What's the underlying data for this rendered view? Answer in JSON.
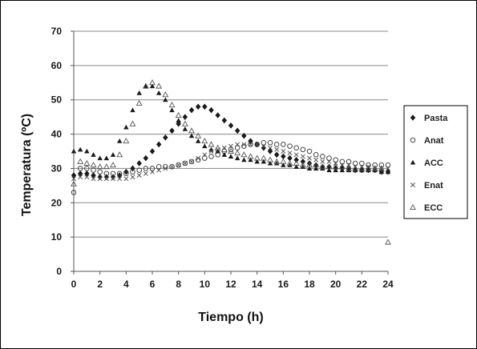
{
  "chart_data": {
    "type": "scatter",
    "xlabel": "Tiempo (h)",
    "ylabel": "Temperatura (ºC)",
    "xlim": [
      0,
      24
    ],
    "ylim": [
      0,
      70
    ],
    "xticks": [
      0,
      2,
      4,
      6,
      8,
      10,
      12,
      14,
      16,
      18,
      20,
      22,
      24
    ],
    "yticks": [
      0,
      10,
      20,
      30,
      40,
      50,
      60,
      70
    ],
    "grid": "horizontal",
    "legend_position": "right",
    "series": [
      {
        "name": "Pasta",
        "marker": "diamond-filled",
        "color": "#1a1a1a",
        "points": [
          [
            0,
            28
          ],
          [
            0.5,
            28.5
          ],
          [
            1,
            28.5
          ],
          [
            1.5,
            28
          ],
          [
            2,
            27.5
          ],
          [
            2.5,
            27.5
          ],
          [
            3,
            27.5
          ],
          [
            3.5,
            28
          ],
          [
            4,
            29
          ],
          [
            4.5,
            30
          ],
          [
            5,
            31.5
          ],
          [
            5.5,
            33
          ],
          [
            6,
            35
          ],
          [
            6.5,
            37
          ],
          [
            7,
            39
          ],
          [
            7.5,
            41
          ],
          [
            8,
            43
          ],
          [
            8.5,
            45
          ],
          [
            9,
            47
          ],
          [
            9.5,
            48
          ],
          [
            10,
            48
          ],
          [
            10.5,
            47
          ],
          [
            11,
            45.5
          ],
          [
            11.5,
            44
          ],
          [
            12,
            42.5
          ],
          [
            12.5,
            41
          ],
          [
            13,
            39.5
          ],
          [
            13.5,
            38
          ],
          [
            14,
            37
          ],
          [
            14.5,
            36
          ],
          [
            15,
            35
          ],
          [
            15.5,
            34
          ],
          [
            16,
            33.5
          ],
          [
            16.5,
            33
          ],
          [
            17,
            32.5
          ],
          [
            17.5,
            32
          ],
          [
            18,
            31.5
          ],
          [
            18.5,
            31
          ],
          [
            19,
            30.5
          ],
          [
            19.5,
            30.5
          ],
          [
            20,
            30
          ],
          [
            20.5,
            30
          ],
          [
            21,
            30
          ],
          [
            21.5,
            29.5
          ],
          [
            22,
            29.5
          ],
          [
            22.5,
            29.5
          ],
          [
            23,
            29.5
          ],
          [
            23.5,
            29
          ],
          [
            24,
            29
          ]
        ]
      },
      {
        "name": "Anat",
        "marker": "circle-open",
        "color": "#333333",
        "points": [
          [
            0,
            23
          ],
          [
            0.5,
            30
          ],
          [
            1,
            30
          ],
          [
            1.5,
            29.5
          ],
          [
            2,
            29
          ],
          [
            2.5,
            28.5
          ],
          [
            3,
            28.5
          ],
          [
            3.5,
            28.5
          ],
          [
            4,
            28.5
          ],
          [
            4.5,
            29
          ],
          [
            5,
            29.5
          ],
          [
            5.5,
            30
          ],
          [
            6,
            30
          ],
          [
            6.5,
            30.5
          ],
          [
            7,
            30.5
          ],
          [
            7.5,
            30.5
          ],
          [
            8,
            31
          ],
          [
            8.5,
            31.5
          ],
          [
            9,
            32
          ],
          [
            9.5,
            32.5
          ],
          [
            10,
            33
          ],
          [
            10.5,
            33.5
          ],
          [
            11,
            34
          ],
          [
            11.5,
            35
          ],
          [
            12,
            35.5
          ],
          [
            12.5,
            36
          ],
          [
            13,
            36.5
          ],
          [
            13.5,
            37
          ],
          [
            14,
            37
          ],
          [
            14.5,
            37.5
          ],
          [
            15,
            37.5
          ],
          [
            15.5,
            37
          ],
          [
            16,
            37
          ],
          [
            16.5,
            36.5
          ],
          [
            17,
            36
          ],
          [
            17.5,
            35.5
          ],
          [
            18,
            35
          ],
          [
            18.5,
            34
          ],
          [
            19,
            33.5
          ],
          [
            19.5,
            33
          ],
          [
            20,
            32.5
          ],
          [
            20.5,
            32
          ],
          [
            21,
            32
          ],
          [
            21.5,
            31.5
          ],
          [
            22,
            31.5
          ],
          [
            22.5,
            31
          ],
          [
            23,
            31
          ],
          [
            23.5,
            31
          ],
          [
            24,
            31
          ]
        ]
      },
      {
        "name": "ACC",
        "marker": "triangle-filled",
        "color": "#1a1a1a",
        "points": [
          [
            0,
            35
          ],
          [
            0.5,
            35.5
          ],
          [
            1,
            35
          ],
          [
            1.5,
            34
          ],
          [
            2,
            33
          ],
          [
            2.5,
            33
          ],
          [
            3,
            34
          ],
          [
            3.5,
            38
          ],
          [
            4,
            42
          ],
          [
            4.5,
            47
          ],
          [
            5,
            52
          ],
          [
            5.5,
            54
          ],
          [
            6,
            54
          ],
          [
            6.5,
            52
          ],
          [
            7,
            50
          ],
          [
            7.5,
            47
          ],
          [
            8,
            44
          ],
          [
            8.5,
            41.5
          ],
          [
            9,
            39.5
          ],
          [
            9.5,
            38
          ],
          [
            10,
            36.5
          ],
          [
            10.5,
            35.5
          ],
          [
            11,
            35
          ],
          [
            11.5,
            34
          ],
          [
            12,
            33.5
          ],
          [
            12.5,
            33
          ],
          [
            13,
            32.5
          ],
          [
            13.5,
            32.5
          ],
          [
            14,
            32
          ],
          [
            14.5,
            32
          ],
          [
            15,
            31.5
          ],
          [
            15.5,
            31.5
          ],
          [
            16,
            31
          ],
          [
            16.5,
            31
          ],
          [
            17,
            30.5
          ],
          [
            17.5,
            30.5
          ],
          [
            18,
            30
          ],
          [
            18.5,
            30
          ],
          [
            19,
            30
          ],
          [
            19.5,
            29.5
          ],
          [
            20,
            29.5
          ],
          [
            20.5,
            29.5
          ],
          [
            21,
            29.5
          ],
          [
            21.5,
            29.5
          ],
          [
            22,
            29.5
          ],
          [
            22.5,
            29.5
          ],
          [
            23,
            29.5
          ],
          [
            23.5,
            29
          ],
          [
            24,
            29
          ]
        ]
      },
      {
        "name": "Enat",
        "marker": "cross",
        "color": "#555555",
        "points": [
          [
            0,
            27
          ],
          [
            0.5,
            27.5
          ],
          [
            1,
            27.5
          ],
          [
            1.5,
            27
          ],
          [
            2,
            27
          ],
          [
            2.5,
            27
          ],
          [
            3,
            27
          ],
          [
            3.5,
            27
          ],
          [
            4,
            27
          ],
          [
            4.5,
            27.5
          ],
          [
            5,
            28
          ],
          [
            5.5,
            28.5
          ],
          [
            6,
            29
          ],
          [
            6.5,
            29.5
          ],
          [
            7,
            30
          ],
          [
            7.5,
            30.5
          ],
          [
            8,
            31
          ],
          [
            8.5,
            31.5
          ],
          [
            9,
            32
          ],
          [
            9.5,
            33
          ],
          [
            10,
            34
          ],
          [
            10.5,
            35
          ],
          [
            11,
            35.5
          ],
          [
            11.5,
            36
          ],
          [
            12,
            36.5
          ],
          [
            12.5,
            37
          ],
          [
            13,
            37
          ],
          [
            13.5,
            37
          ],
          [
            14,
            37
          ],
          [
            14.5,
            36.5
          ],
          [
            15,
            36
          ],
          [
            15.5,
            35.5
          ],
          [
            16,
            35
          ],
          [
            16.5,
            34.5
          ],
          [
            17,
            34
          ],
          [
            17.5,
            33.5
          ],
          [
            18,
            33
          ],
          [
            18.5,
            32.5
          ],
          [
            19,
            32
          ],
          [
            19.5,
            32
          ],
          [
            20,
            31.5
          ],
          [
            20.5,
            31
          ],
          [
            21,
            31
          ],
          [
            21.5,
            30.5
          ],
          [
            22,
            30.5
          ],
          [
            22.5,
            30.5
          ],
          [
            23,
            30
          ],
          [
            23.5,
            30
          ],
          [
            24,
            30
          ]
        ]
      },
      {
        "name": "ECC",
        "marker": "triangle-open",
        "color": "#555555",
        "points": [
          [
            0,
            25.5
          ],
          [
            0.5,
            32
          ],
          [
            1,
            31.5
          ],
          [
            1.5,
            31
          ],
          [
            2,
            30.5
          ],
          [
            2.5,
            30.5
          ],
          [
            3,
            31
          ],
          [
            3.5,
            34
          ],
          [
            4,
            38
          ],
          [
            4.5,
            43
          ],
          [
            5,
            49
          ],
          [
            5.5,
            54
          ],
          [
            6,
            55
          ],
          [
            6.5,
            54
          ],
          [
            7,
            51.5
          ],
          [
            7.5,
            48.5
          ],
          [
            8,
            45.5
          ],
          [
            8.5,
            43
          ],
          [
            9,
            41
          ],
          [
            9.5,
            39.5
          ],
          [
            10,
            38
          ],
          [
            10.5,
            37
          ],
          [
            11,
            36
          ],
          [
            11.5,
            35.5
          ],
          [
            12,
            35
          ],
          [
            12.5,
            34.5
          ],
          [
            13,
            34
          ],
          [
            13.5,
            33.5
          ],
          [
            14,
            33
          ],
          [
            14.5,
            33
          ],
          [
            15,
            32.5
          ],
          [
            15.5,
            32
          ],
          [
            16,
            32
          ],
          [
            16.5,
            31.5
          ],
          [
            17,
            31.5
          ],
          [
            17.5,
            31
          ],
          [
            18,
            31
          ],
          [
            18.5,
            31
          ],
          [
            19,
            30.5
          ],
          [
            19.5,
            30.5
          ],
          [
            20,
            30.5
          ],
          [
            20.5,
            30.5
          ],
          [
            21,
            30
          ],
          [
            21.5,
            30
          ],
          [
            22,
            30
          ],
          [
            22.5,
            30
          ],
          [
            23,
            30
          ],
          [
            23.5,
            30
          ],
          [
            24,
            8.5
          ]
        ]
      }
    ]
  }
}
